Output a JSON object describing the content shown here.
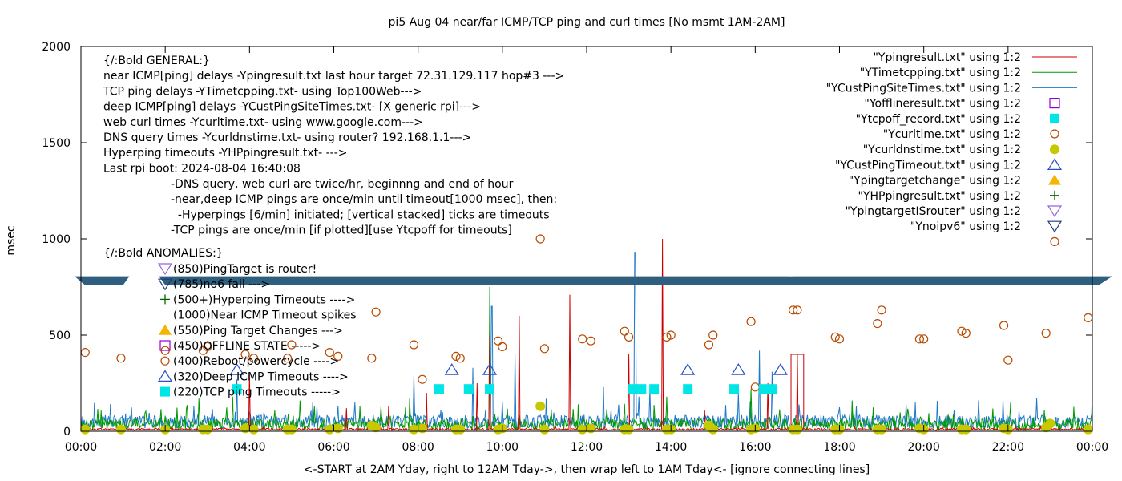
{
  "chart_data": {
    "type": "line",
    "title": "pi5 Aug 04  near/far ICMP/TCP ping and curl times [No msmt 1AM-2AM]",
    "xlabel": "<-START at 2AM Yday, right to 12AM Tday->, then wrap left to 1AM Tday<- [ignore connecting lines]",
    "ylabel": "msec",
    "xlim": [
      0,
      24
    ],
    "ylim": [
      0,
      2000
    ],
    "x_unit": "hour of day",
    "x_ticks": [
      "00:00",
      "02:00",
      "04:00",
      "06:00",
      "08:00",
      "10:00",
      "12:00",
      "14:00",
      "16:00",
      "18:00",
      "20:00",
      "22:00",
      "00:00"
    ],
    "y_ticks": [
      "0",
      "500",
      "1000",
      "1500",
      "2000"
    ],
    "grid": false,
    "legend_position": "top-right",
    "colors": {
      "ping": "#cc0000",
      "tcp": "#009900",
      "cust": "#1f78c8",
      "offline": "#9400d3",
      "tcpoff": "#00e5e5",
      "curl": "#b84a00",
      "dns": "#c8c800",
      "custtimeout": "#2850c8",
      "targetchange": "#f5b400",
      "hpping": "#006400",
      "isrouter": "#9466e0",
      "noipv6": "#1e3c78",
      "band": "#2e5f7f"
    },
    "legend": [
      {
        "label": "\"Ypingresult.txt\" using 1:2",
        "style": "line",
        "color": "#cc0000"
      },
      {
        "label": "\"YTimetcpping.txt\" using 1:2",
        "style": "line",
        "color": "#009900"
      },
      {
        "label": "\"YCustPingSiteTimes.txt\" using 1:2",
        "style": "line",
        "color": "#1f78c8"
      },
      {
        "label": "\"Yofflineresult.txt\" using 1:2",
        "style": "square-open",
        "color": "#9400d3"
      },
      {
        "label": "\"Ytcpoff_record.txt\" using 1:2",
        "style": "square-filled",
        "color": "#00e5e5"
      },
      {
        "label": "\"Ycurltime.txt\" using 1:2",
        "style": "circle-open",
        "color": "#b84a00"
      },
      {
        "label": "\"Ycurldnstime.txt\" using 1:2",
        "style": "circle-filled",
        "color": "#c8c800"
      },
      {
        "label": "\"YCustPingTimeout.txt\" using 1:2",
        "style": "triangle-open",
        "color": "#2850c8"
      },
      {
        "label": "\"Ypingtargetchange\" using 1:2",
        "style": "triangle-filled",
        "color": "#f5b400"
      },
      {
        "label": "\"YHPpingresult.txt\" using 1:2",
        "style": "plus",
        "color": "#006400"
      },
      {
        "label": "\"YpingtargetISrouter\" using 1:2",
        "style": "triangle-down-open",
        "color": "#9466e0"
      },
      {
        "label": "\"Ynoipv6\" using 1:2",
        "style": "triangle-down-open",
        "color": "#1e3c78"
      },
      {
        "label": "",
        "style": "circle-open",
        "color": "#b84a00"
      }
    ],
    "general_lines": [
      "{/:Bold GENERAL:}",
      "near ICMP[ping] delays -Ypingresult.txt last hour target 72.31.129.117 hop#3 --->",
      "TCP ping delays -YTimetcpping.txt- using Top100Web--->",
      "deep ICMP[ping] delays -YCustPingSiteTimes.txt- [X generic rpi]--->",
      "web curl times -Ycurltime.txt- using www.google.com--->",
      "DNS query times -Ycurldnstime.txt- using router? 192.168.1.1--->",
      "Hyperping timeouts -YHPpingresult.txt- --->",
      "Last rpi boot: 2024-08-04 16:40:08"
    ],
    "notes_lines": [
      "-DNS query, web curl are twice/hr, beginnng and end of hour",
      "-near,deep ICMP pings are once/min until timeout[1000 msec], then:",
      "  -Hyperpings [6/min] initiated; [vertical stacked] ticks are timeouts",
      "-TCP pings are once/min [if plotted][use Ytcpoff for timeouts]"
    ],
    "anomalies_title": "{/:Bold ANOMALIES:}",
    "anomalies": [
      {
        "label": "(850)PingTarget is router!",
        "style": "triangle-down-open",
        "color": "#9466e0"
      },
      {
        "label": "(785)no6 fail --->",
        "style": "triangle-down-open",
        "color": "#1e3c78"
      },
      {
        "label": "(500+)Hyperping Timeouts ---->",
        "style": "plus",
        "color": "#006400"
      },
      {
        "label": "(1000)Near ICMP Timeout spikes",
        "style": "none",
        "color": "#cc0000"
      },
      {
        "label": "(550)Ping Target Changes --->",
        "style": "triangle-filled",
        "color": "#f5b400"
      },
      {
        "label": "(450)OFFLINE STATE ----->",
        "style": "square-open",
        "color": "#9400d3"
      },
      {
        "label": "(400)Reboot/powercycle ---->",
        "style": "circle-open",
        "color": "#b84a00"
      },
      {
        "label": "(320)Deep ICMP Timeouts ---->",
        "style": "triangle-open",
        "color": "#2850c8"
      },
      {
        "label": "(220)TCP ping Timeouts ----->",
        "style": "square-filled",
        "color": "#00e5e5"
      }
    ],
    "series": [
      {
        "name": "\"Ycurltime.txt\" using 1:2",
        "style": "circle-open",
        "color": "#b84a00",
        "points": [
          [
            0.1,
            410
          ],
          [
            0.95,
            380
          ],
          [
            2.0,
            420
          ],
          [
            2.9,
            420
          ],
          [
            3.0,
            440
          ],
          [
            3.9,
            400
          ],
          [
            4.1,
            380
          ],
          [
            4.9,
            380
          ],
          [
            5.0,
            450
          ],
          [
            5.9,
            410
          ],
          [
            6.1,
            390
          ],
          [
            6.9,
            380
          ],
          [
            7.0,
            620
          ],
          [
            7.9,
            450
          ],
          [
            8.1,
            270
          ],
          [
            8.9,
            390
          ],
          [
            9.0,
            380
          ],
          [
            9.9,
            470
          ],
          [
            10.0,
            440
          ],
          [
            10.9,
            1000
          ],
          [
            11.0,
            430
          ],
          [
            11.9,
            480
          ],
          [
            12.1,
            470
          ],
          [
            12.9,
            520
          ],
          [
            13.0,
            490
          ],
          [
            13.9,
            490
          ],
          [
            14.0,
            500
          ],
          [
            14.9,
            450
          ],
          [
            15.0,
            500
          ],
          [
            15.9,
            570
          ],
          [
            16.0,
            230
          ],
          [
            16.9,
            630
          ],
          [
            17.0,
            630
          ],
          [
            17.9,
            490
          ],
          [
            18.0,
            480
          ],
          [
            18.9,
            560
          ],
          [
            19.0,
            630
          ],
          [
            19.9,
            480
          ],
          [
            20.0,
            480
          ],
          [
            20.9,
            520
          ],
          [
            21.0,
            510
          ],
          [
            21.9,
            550
          ],
          [
            22.0,
            370
          ],
          [
            22.9,
            510
          ],
          [
            23.9,
            590
          ]
        ]
      },
      {
        "name": "\"Ycurldnstime.txt\" using 1:2",
        "style": "circle-filled",
        "color": "#c8c800",
        "points": [
          [
            0.1,
            10
          ],
          [
            0.95,
            10
          ],
          [
            2.0,
            10
          ],
          [
            2.9,
            10
          ],
          [
            3.0,
            10
          ],
          [
            3.9,
            15
          ],
          [
            4.1,
            10
          ],
          [
            4.9,
            10
          ],
          [
            5.0,
            10
          ],
          [
            5.9,
            10
          ],
          [
            6.1,
            15
          ],
          [
            6.9,
            30
          ],
          [
            7.0,
            20
          ],
          [
            7.9,
            10
          ],
          [
            8.1,
            15
          ],
          [
            8.9,
            10
          ],
          [
            9.0,
            10
          ],
          [
            9.9,
            10
          ],
          [
            10.0,
            15
          ],
          [
            10.9,
            130
          ],
          [
            11.0,
            10
          ],
          [
            11.9,
            10
          ],
          [
            12.1,
            15
          ],
          [
            12.9,
            10
          ],
          [
            13.0,
            10
          ],
          [
            13.9,
            10
          ],
          [
            14.0,
            10
          ],
          [
            14.9,
            30
          ],
          [
            15.0,
            10
          ],
          [
            15.9,
            10
          ],
          [
            16.0,
            15
          ],
          [
            16.9,
            10
          ],
          [
            17.0,
            10
          ],
          [
            17.9,
            10
          ],
          [
            18.0,
            10
          ],
          [
            18.9,
            10
          ],
          [
            19.0,
            10
          ],
          [
            19.9,
            15
          ],
          [
            20.0,
            10
          ],
          [
            20.9,
            10
          ],
          [
            21.0,
            10
          ],
          [
            21.9,
            15
          ],
          [
            22.0,
            10
          ],
          [
            22.9,
            20
          ],
          [
            23.0,
            40
          ],
          [
            23.9,
            10
          ]
        ]
      },
      {
        "name": "\"Ytcpoff_record.txt\" using 1:2",
        "style": "square-filled",
        "color": "#00e5e5",
        "points": [
          [
            3.7,
            220
          ],
          [
            8.5,
            220
          ],
          [
            9.2,
            220
          ],
          [
            9.7,
            220
          ],
          [
            13.1,
            220
          ],
          [
            13.3,
            220
          ],
          [
            13.6,
            220
          ],
          [
            14.4,
            220
          ],
          [
            15.5,
            220
          ],
          [
            16.2,
            220
          ],
          [
            16.4,
            220
          ]
        ]
      },
      {
        "name": "\"YCustPingTimeout.txt\" using 1:2",
        "style": "triangle-open",
        "color": "#2850c8",
        "points": [
          [
            3.7,
            320
          ],
          [
            8.8,
            320
          ],
          [
            9.7,
            320
          ],
          [
            14.4,
            320
          ],
          [
            15.6,
            320
          ],
          [
            16.6,
            320
          ]
        ]
      }
    ],
    "traces": {
      "ping_baseline": 10,
      "tcp_baseline": 35,
      "cust_baseline": 50,
      "ping_spikes": [
        [
          4.0,
          300
        ],
        [
          6.3,
          120
        ],
        [
          7.3,
          130
        ],
        [
          8.2,
          200
        ],
        [
          9.4,
          250
        ],
        [
          9.7,
          500
        ],
        [
          10.4,
          600
        ],
        [
          11.6,
          710
        ],
        [
          13.0,
          400
        ],
        [
          13.8,
          1000
        ],
        [
          14.8,
          110
        ],
        [
          16.3,
          250
        ],
        [
          17.0,
          400
        ]
      ],
      "tcp_spikes": [
        [
          2.8,
          170
        ],
        [
          3.6,
          180
        ],
        [
          5.2,
          160
        ],
        [
          7.8,
          170
        ],
        [
          9.7,
          750
        ],
        [
          11.8,
          140
        ],
        [
          13.9,
          180
        ],
        [
          15.9,
          220
        ],
        [
          18.3,
          160
        ],
        [
          24.0,
          200
        ]
      ],
      "cust_spikes": [
        [
          3.7,
          270
        ],
        [
          5.5,
          150
        ],
        [
          6.5,
          150
        ],
        [
          7.9,
          290
        ],
        [
          9.3,
          330
        ],
        [
          9.75,
          650
        ],
        [
          10.3,
          400
        ],
        [
          12.4,
          230
        ],
        [
          13.15,
          930
        ],
        [
          13.5,
          220
        ],
        [
          15.6,
          200
        ],
        [
          16.1,
          420
        ],
        [
          16.4,
          310
        ],
        [
          19.8,
          150
        ],
        [
          21.3,
          160
        ]
      ]
    }
  }
}
